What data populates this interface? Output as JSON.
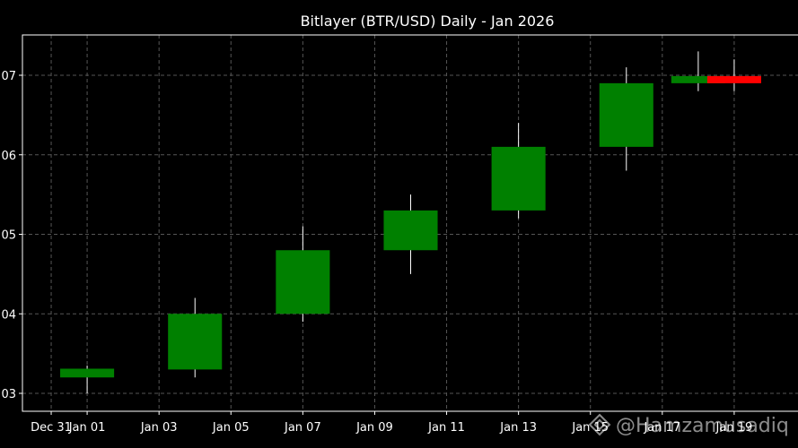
{
  "chart_data": {
    "type": "candlestick",
    "title": "Bitlayer (BTR/USD) Daily - Jan 2026",
    "xlabel": "",
    "ylabel": "",
    "y_tick_labels": [
      "03",
      "04",
      "05",
      "06",
      "07"
    ],
    "y_tick_values": [
      0.03,
      0.04,
      0.05,
      0.06,
      0.07
    ],
    "x_tick_labels": [
      "Dec 31",
      "Jan 01",
      "Jan 03",
      "Jan 05",
      "Jan 07",
      "Jan 09",
      "Jan 11",
      "Jan 13",
      "Jan 15",
      "Jan 17",
      "Jan 19"
    ],
    "x_tick_days": [
      -1,
      0,
      2,
      4,
      6,
      8,
      10,
      12,
      14,
      16,
      18
    ],
    "xlim_days": [
      -1.8,
      19.8
    ],
    "ylim": [
      0.0279,
      0.0328
    ],
    "grid": true,
    "colors": {
      "up": "#008000",
      "down": "#ff0000",
      "background": "#000000",
      "text": "#ffffff",
      "grid": "#555555"
    },
    "candles": [
      {
        "date": "Jan 01",
        "day": 0,
        "open": 0.032,
        "high": 0.0335,
        "low": 0.03,
        "close": 0.0331
      },
      {
        "date": "Jan 04",
        "day": 3,
        "open": 0.033,
        "high": 0.042,
        "low": 0.032,
        "close": 0.04
      },
      {
        "date": "Jan 07",
        "day": 6,
        "open": 0.04,
        "high": 0.051,
        "low": 0.039,
        "close": 0.048
      },
      {
        "date": "Jan 10",
        "day": 9,
        "open": 0.048,
        "high": 0.055,
        "low": 0.045,
        "close": 0.053
      },
      {
        "date": "Jan 13",
        "day": 12,
        "open": 0.053,
        "high": 0.064,
        "low": 0.052,
        "close": 0.061
      },
      {
        "date": "Jan 16",
        "day": 15,
        "open": 0.061,
        "high": 0.071,
        "low": 0.058,
        "close": 0.069
      },
      {
        "date": "Jan 17",
        "day": 17,
        "open": 0.069,
        "high": 0.073,
        "low": 0.068,
        "close": 0.0699
      },
      {
        "date": "Jan 18",
        "day": 18,
        "open": 0.0699,
        "high": 0.072,
        "low": 0.068,
        "close": 0.069
      }
    ]
  },
  "watermark": {
    "text": "@Hamzamusadiq",
    "icon": "binance-diamond-icon"
  }
}
